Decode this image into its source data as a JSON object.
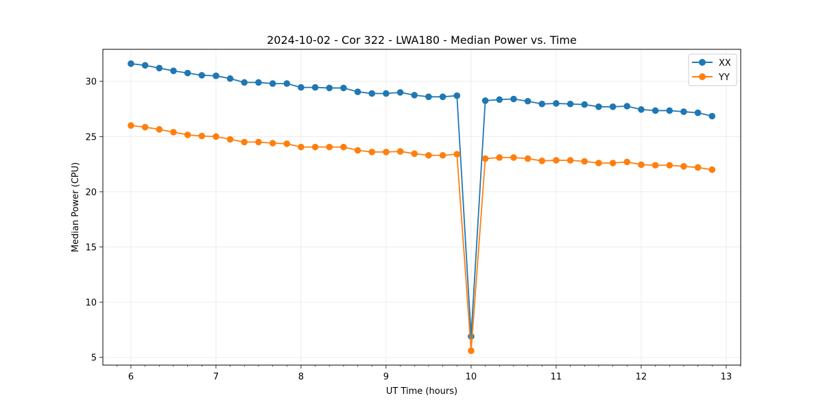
{
  "chart_data": {
    "type": "line",
    "title": "2024-10-02 - Cor 322 - LWA180 - Median Power vs. Time",
    "xlabel": "UT Time (hours)",
    "ylabel": "Median Power (CPU)",
    "xlim": [
      5.67,
      13.17
    ],
    "ylim": [
      4.3,
      32.9
    ],
    "xticks": [
      6,
      7,
      8,
      9,
      10,
      11,
      12,
      13
    ],
    "yticks": [
      5,
      10,
      15,
      20,
      25,
      30
    ],
    "grid": true,
    "legend_position": "top-right",
    "x": [
      6.0,
      6.1667,
      6.3333,
      6.5,
      6.6667,
      6.8333,
      7.0,
      7.1667,
      7.3333,
      7.5,
      7.6667,
      7.8333,
      8.0,
      8.1667,
      8.3333,
      8.5,
      8.6667,
      8.8333,
      9.0,
      9.1667,
      9.3333,
      9.5,
      9.6667,
      9.8333,
      10.0,
      10.1667,
      10.3333,
      10.5,
      10.6667,
      10.8333,
      11.0,
      11.1667,
      11.3333,
      11.5,
      11.6667,
      11.8333,
      12.0,
      12.1667,
      12.3333,
      12.5,
      12.6667,
      12.8333
    ],
    "series": [
      {
        "name": "XX",
        "color": "#1f77b4",
        "values": [
          31.6,
          31.45,
          31.2,
          30.95,
          30.75,
          30.55,
          30.5,
          30.25,
          29.9,
          29.9,
          29.8,
          29.8,
          29.45,
          29.45,
          29.4,
          29.4,
          29.05,
          28.9,
          28.9,
          29.0,
          28.75,
          28.6,
          28.6,
          28.7,
          6.9,
          28.25,
          28.35,
          28.4,
          28.2,
          27.95,
          28.0,
          27.95,
          27.9,
          27.7,
          27.7,
          27.75,
          27.45,
          27.35,
          27.35,
          27.25,
          27.15,
          26.85
        ]
      },
      {
        "name": "YY",
        "color": "#ff7f0e",
        "values": [
          26.0,
          25.85,
          25.65,
          25.4,
          25.15,
          25.05,
          25.0,
          24.75,
          24.5,
          24.5,
          24.4,
          24.35,
          24.05,
          24.05,
          24.05,
          24.05,
          23.75,
          23.6,
          23.6,
          23.65,
          23.45,
          23.3,
          23.3,
          23.4,
          5.6,
          23.0,
          23.1,
          23.1,
          23.0,
          22.8,
          22.85,
          22.85,
          22.75,
          22.6,
          22.6,
          22.7,
          22.45,
          22.4,
          22.4,
          22.3,
          22.2,
          22.0
        ]
      }
    ]
  }
}
